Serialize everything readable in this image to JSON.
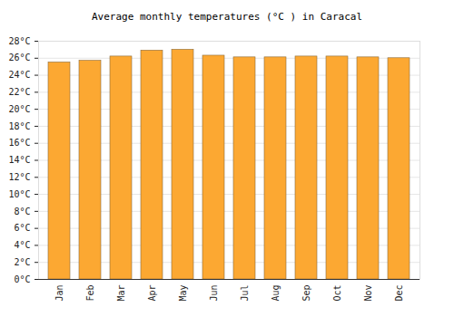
{
  "chart_data": {
    "type": "bar",
    "title": "Average monthly temperatures (°C ) in Caracal",
    "categories": [
      "Jan",
      "Feb",
      "Mar",
      "Apr",
      "May",
      "Jun",
      "Jul",
      "Aug",
      "Sep",
      "Oct",
      "Nov",
      "Dec"
    ],
    "values": [
      25.5,
      25.7,
      26.2,
      26.9,
      27.0,
      26.3,
      26.1,
      26.1,
      26.2,
      26.2,
      26.1,
      26.0
    ],
    "color": "#fca832",
    "ylim": [
      0,
      28
    ],
    "yticks": [
      {
        "value": 0,
        "label": "0°C"
      },
      {
        "value": 2,
        "label": "2°C"
      },
      {
        "value": 4,
        "label": "4°C"
      },
      {
        "value": 6,
        "label": "6°C"
      },
      {
        "value": 8,
        "label": "8°C"
      },
      {
        "value": 10,
        "label": "10°C"
      },
      {
        "value": 12,
        "label": "12°C"
      },
      {
        "value": 14,
        "label": "14°C"
      },
      {
        "value": 16,
        "label": "16°C"
      },
      {
        "value": 18,
        "label": "18°C"
      },
      {
        "value": 20,
        "label": "20°C"
      },
      {
        "value": 22,
        "label": "22°C"
      },
      {
        "value": 24,
        "label": "24°C"
      },
      {
        "value": 26,
        "label": "26°C"
      },
      {
        "value": 28,
        "label": "28°C"
      }
    ],
    "grid": true
  }
}
